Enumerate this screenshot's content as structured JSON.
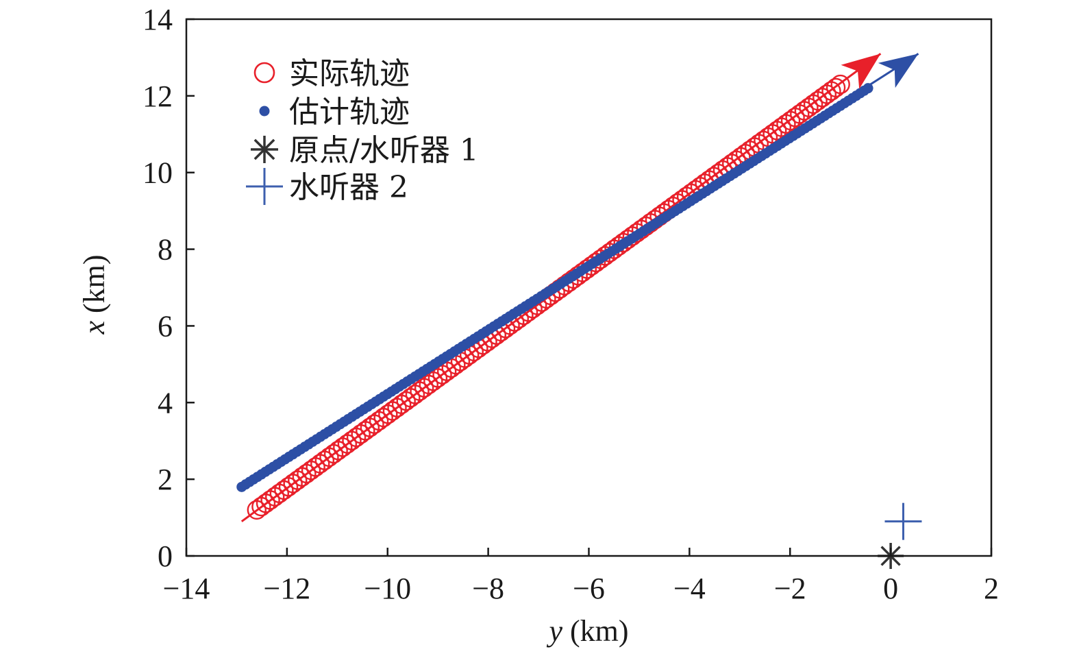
{
  "chart_data": {
    "type": "scatter",
    "title": "",
    "xlabel_var": "y",
    "xlabel_unit": " (km)",
    "ylabel_var": "x",
    "ylabel_unit": " (km)",
    "xlim": [
      -14,
      2
    ],
    "ylim": [
      0,
      14
    ],
    "xticks": [
      -14,
      -12,
      -10,
      -8,
      -6,
      -4,
      -2,
      0,
      2
    ],
    "xtick_labels": [
      "−14",
      "−12",
      "−10",
      "−8",
      "−6",
      "−4",
      "−2",
      "0",
      "2"
    ],
    "yticks": [
      0,
      2,
      4,
      6,
      8,
      10,
      12,
      14
    ],
    "ytick_labels": [
      "0",
      "2",
      "4",
      "6",
      "8",
      "10",
      "12",
      "14"
    ],
    "grid": false,
    "legend_position": "top-left",
    "series": [
      {
        "name": "实际轨迹",
        "marker": "circle-open",
        "color": "#e8202a",
        "start": [
          -12.6,
          1.2
        ],
        "end": [
          -1.0,
          12.3
        ],
        "line_start": [
          -12.9,
          0.9
        ],
        "arrow_end": [
          -0.2,
          13.1
        ]
      },
      {
        "name": "估计轨迹",
        "marker": "dot",
        "color": "#2d4fa5",
        "start": [
          -12.9,
          1.8
        ],
        "end": [
          -0.45,
          12.2
        ],
        "arrow_end": [
          0.55,
          13.1
        ]
      },
      {
        "name": "原点/水听器 1",
        "marker": "asterisk",
        "color": "#333333",
        "point": [
          0,
          0
        ]
      },
      {
        "name": "水听器 2",
        "marker": "plus",
        "color": "#3d5fae",
        "point": [
          0.25,
          0.9
        ]
      }
    ]
  }
}
